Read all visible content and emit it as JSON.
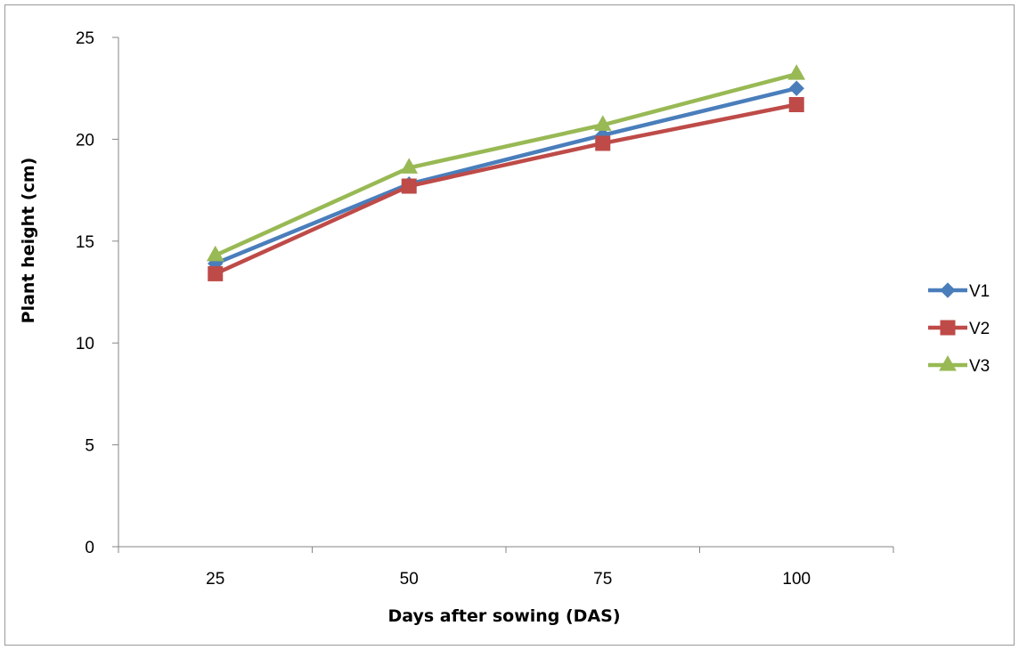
{
  "chart_data": {
    "type": "line",
    "categories": [
      "25",
      "50",
      "75",
      "100"
    ],
    "series": [
      {
        "name": "V1",
        "values": [
          13.9,
          17.8,
          20.2,
          22.5
        ],
        "color": "#4a7ebb",
        "marker": "diamond"
      },
      {
        "name": "V2",
        "values": [
          13.4,
          17.7,
          19.8,
          21.7
        ],
        "color": "#be4b48",
        "marker": "square"
      },
      {
        "name": "V3",
        "values": [
          14.3,
          18.6,
          20.7,
          23.2
        ],
        "color": "#98b954",
        "marker": "triangle"
      }
    ],
    "xlabel": "Days after sowing (DAS)",
    "ylabel": "Plant height (cm)",
    "ylim": [
      0,
      25
    ],
    "yticks": [
      0,
      5,
      10,
      15,
      20,
      25
    ],
    "grid": false,
    "legend_position": "right"
  }
}
